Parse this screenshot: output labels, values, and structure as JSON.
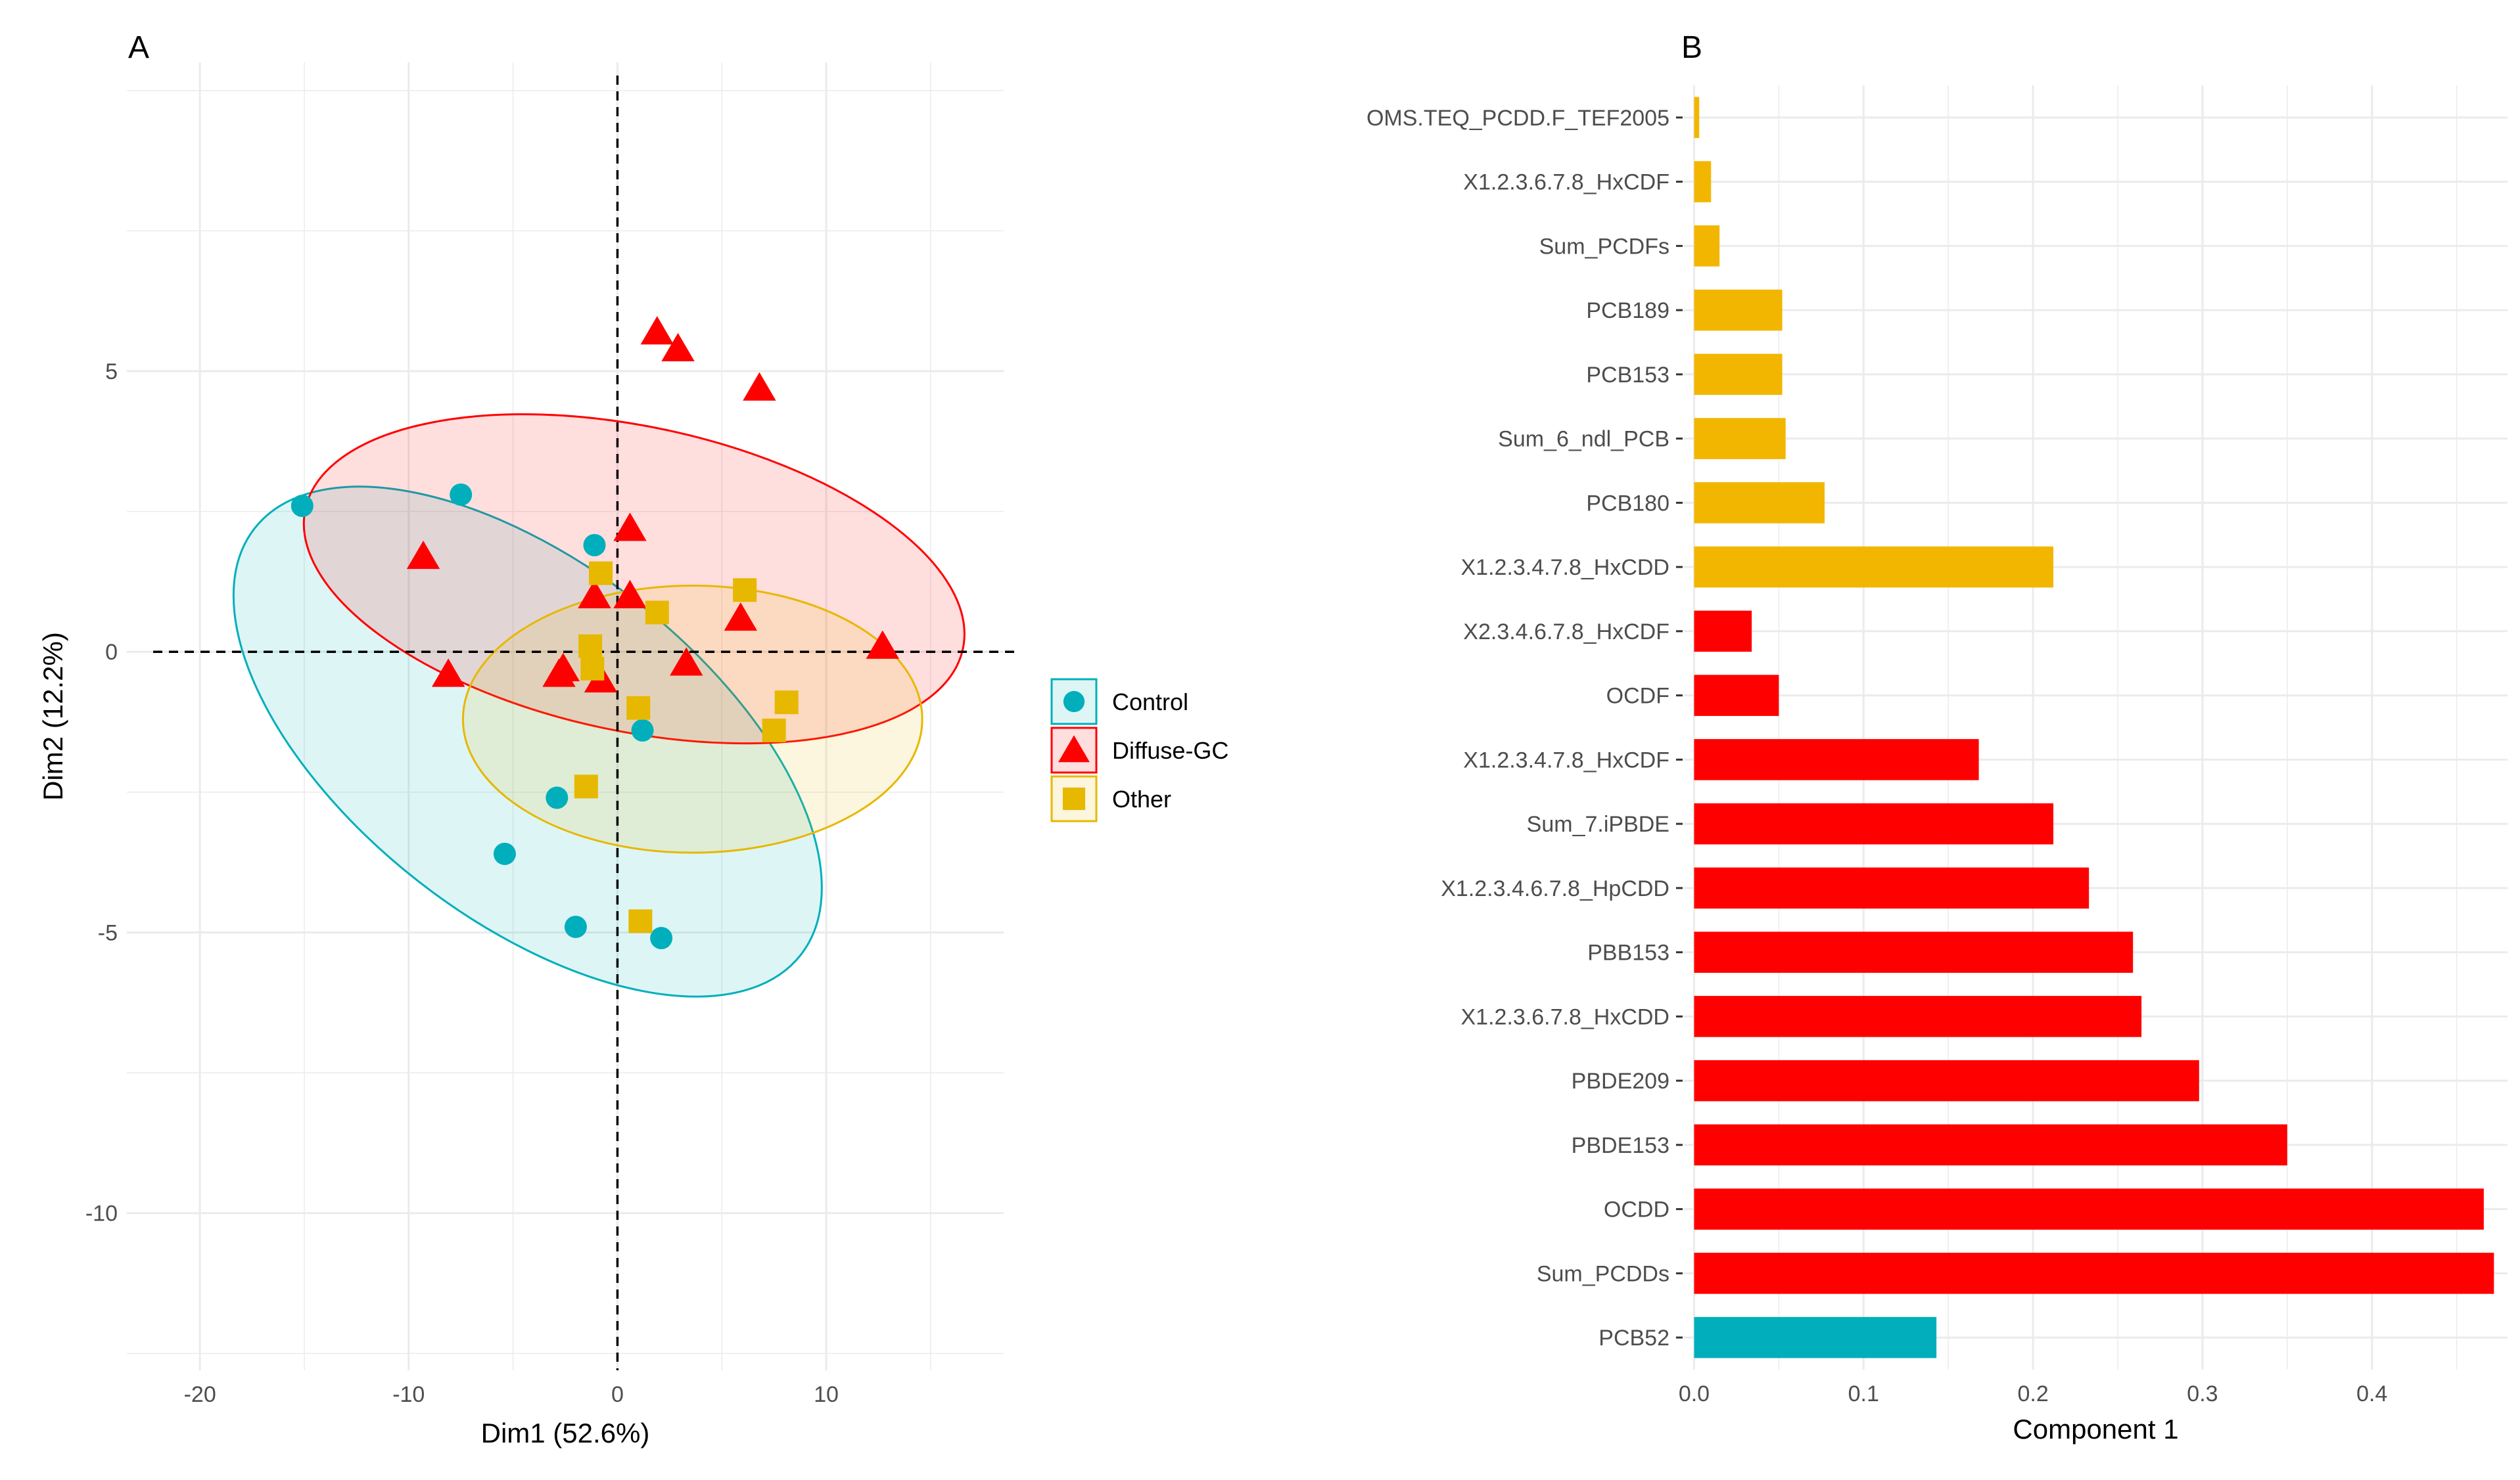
{
  "chart_data": [
    {
      "panel": "A",
      "type": "scatter",
      "xlabel": "Dim1 (52.6%)",
      "ylabel": "Dim2 (12.2%)",
      "xlim": [
        -23.5,
        18.5
      ],
      "ylim": [
        -12.8,
        10.5
      ],
      "xticks": [
        -20,
        -10,
        0,
        10
      ],
      "yticks": [
        -10,
        -5,
        0,
        5
      ],
      "grid": true,
      "legend_position": "right",
      "series": [
        {
          "name": "Control",
          "shape": "circle",
          "color": "#00AFBB",
          "points": [
            [
              -15.1,
              2.6
            ],
            [
              -7.5,
              2.8
            ],
            [
              -1.1,
              1.9
            ],
            [
              1.2,
              -1.4
            ],
            [
              -2.9,
              -2.6
            ],
            [
              -5.4,
              -3.6
            ],
            [
              -2.0,
              -4.9
            ],
            [
              2.1,
              -5.1
            ]
          ],
          "ellipse": {
            "cx": -4.3,
            "cy": -1.6,
            "rx": 16.6,
            "ry": 8.5,
            "angle_deg": 38
          }
        },
        {
          "name": "Diffuse-GC",
          "shape": "triangle",
          "color": "#FF0000",
          "points": [
            [
              1.9,
              5.7
            ],
            [
              2.9,
              5.4
            ],
            [
              6.8,
              4.7
            ],
            [
              -9.3,
              1.7
            ],
            [
              0.6,
              2.2
            ],
            [
              -1.1,
              1.0
            ],
            [
              0.6,
              1.0
            ],
            [
              5.9,
              0.6
            ],
            [
              12.7,
              0.1
            ],
            [
              -8.1,
              -0.4
            ],
            [
              -2.8,
              -0.4
            ],
            [
              -2.6,
              -0.3
            ],
            [
              -0.8,
              -0.5
            ],
            [
              3.3,
              -0.2
            ]
          ],
          "ellipse": {
            "cx": 0.8,
            "cy": 1.3,
            "rx": 16.1,
            "ry": 7.3,
            "angle_deg": 12
          }
        },
        {
          "name": "Other",
          "shape": "square",
          "color": "#E7B800",
          "points": [
            [
              -0.8,
              1.4
            ],
            [
              6.1,
              1.1
            ],
            [
              1.9,
              0.7
            ],
            [
              -1.3,
              0.1
            ],
            [
              -1.2,
              -0.3
            ],
            [
              1.0,
              -1.0
            ],
            [
              8.1,
              -0.9
            ],
            [
              7.5,
              -1.4
            ],
            [
              -1.5,
              -2.4
            ],
            [
              1.1,
              -4.8
            ]
          ],
          "ellipse": {
            "cx": 3.6,
            "cy": -1.2,
            "rx": 11.0,
            "ry": 6.4,
            "angle_deg": 0
          }
        }
      ],
      "refline_x": 0,
      "refline_y": 0
    },
    {
      "panel": "B",
      "type": "bar",
      "orientation": "horizontal",
      "xlabel": "Component 1",
      "ylabel": "",
      "xlim": [
        -0.006,
        0.48
      ],
      "xticks": [
        0.0,
        0.1,
        0.2,
        0.3,
        0.4
      ],
      "xtick_labels": [
        "0.0",
        "0.1",
        "0.2",
        "0.3",
        "0.4"
      ],
      "grid": true,
      "categories": [
        "OMS.TEQ_PCDD.F_TEF2005",
        "X1.2.3.6.7.8_HxCDF",
        "Sum_PCDFs",
        "PCB189",
        "PCB153",
        "Sum_6_ndl_PCB",
        "PCB180",
        "X1.2.3.4.7.8_HxCDD",
        "X2.3.4.6.7.8_HxCDF",
        "OCDF",
        "X1.2.3.4.7.8_HxCDF",
        "Sum_7.iPBDE",
        "X1.2.3.4.6.7.8_HpCDD",
        "PBB153",
        "X1.2.3.6.7.8_HxCDD",
        "PBDE209",
        "PBDE153",
        "OCDD",
        "Sum_PCDDs",
        "PCB52"
      ],
      "values": [
        0.003,
        0.01,
        0.015,
        0.052,
        0.052,
        0.054,
        0.077,
        0.212,
        0.034,
        0.05,
        0.168,
        0.212,
        0.233,
        0.259,
        0.264,
        0.298,
        0.35,
        0.466,
        0.472,
        0.143
      ],
      "groups": [
        "Other",
        "Other",
        "Other",
        "Other",
        "Other",
        "Other",
        "Other",
        "Other",
        "Diffuse-GC",
        "Diffuse-GC",
        "Diffuse-GC",
        "Diffuse-GC",
        "Diffuse-GC",
        "Diffuse-GC",
        "Diffuse-GC",
        "Diffuse-GC",
        "Diffuse-GC",
        "Diffuse-GC",
        "Diffuse-GC",
        "Control"
      ],
      "group_colors": {
        "Control": "#00AFBB",
        "Diffuse-GC": "#FF0000",
        "Other": "#F2B600"
      }
    }
  ]
}
